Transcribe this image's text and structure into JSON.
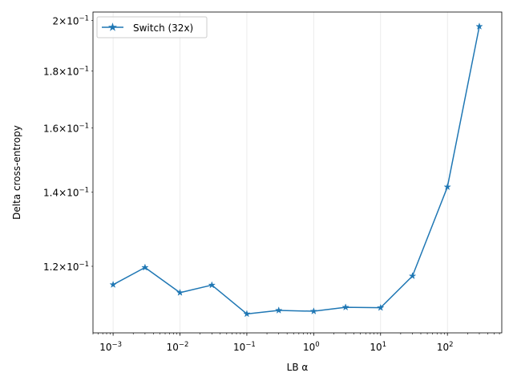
{
  "chart_data": {
    "type": "line",
    "xscale": "log",
    "yscale": "log",
    "xlabel": "LB α",
    "ylabel": "Delta cross-entropy",
    "xlim": [
      0.0005,
      650
    ],
    "ylim": [
      0.1045,
      0.2035
    ],
    "x_ticks": [
      {
        "value": 0.001,
        "base": "10",
        "exp": "−3"
      },
      {
        "value": 0.01,
        "base": "10",
        "exp": "−2"
      },
      {
        "value": 0.1,
        "base": "10",
        "exp": "−1"
      },
      {
        "value": 1,
        "base": "10",
        "exp": "0"
      },
      {
        "value": 10,
        "base": "10",
        "exp": "1"
      },
      {
        "value": 100,
        "base": "10",
        "exp": "2"
      }
    ],
    "y_ticks": [
      {
        "value": 0.12,
        "mantissa": "1.2",
        "times": "×",
        "base": "10",
        "exp": "−1"
      },
      {
        "value": 0.14,
        "mantissa": "1.4",
        "times": "×",
        "base": "10",
        "exp": "−1"
      },
      {
        "value": 0.16,
        "mantissa": "1.6",
        "times": "×",
        "base": "10",
        "exp": "−1"
      },
      {
        "value": 0.18,
        "mantissa": "1.8",
        "times": "×",
        "base": "10",
        "exp": "−1"
      },
      {
        "value": 0.2,
        "mantissa": "2",
        "times": "×",
        "base": "10",
        "exp": "−1"
      }
    ],
    "grid": "x-major-only",
    "legend_position": "upper-left",
    "series": [
      {
        "name": "Switch (32x)",
        "color": "#1f77b4",
        "marker": "star",
        "x": [
          0.001,
          0.003,
          0.01,
          0.03,
          0.1,
          0.3,
          1,
          3,
          10,
          30,
          100,
          300
        ],
        "y": [
          0.1155,
          0.1197,
          0.1136,
          0.1154,
          0.1087,
          0.1095,
          0.1093,
          0.1102,
          0.1101,
          0.1176,
          0.1415,
          0.1975
        ]
      }
    ]
  }
}
